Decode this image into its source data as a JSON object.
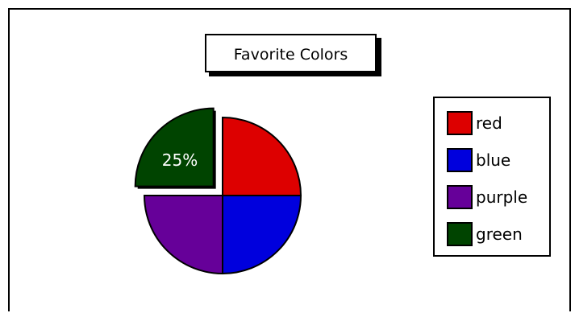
{
  "chart_data": {
    "type": "pie",
    "title": "Favorite Colors",
    "categories": [
      "red",
      "blue",
      "purple",
      "green"
    ],
    "values": [
      25,
      25,
      25,
      25
    ],
    "colors": [
      "#dd0000",
      "#0000dd",
      "#660099",
      "#004400"
    ],
    "exploded": [
      false,
      false,
      false,
      true
    ],
    "data_labels": [
      "",
      "",
      "",
      "25%"
    ],
    "legend_position": "right"
  }
}
